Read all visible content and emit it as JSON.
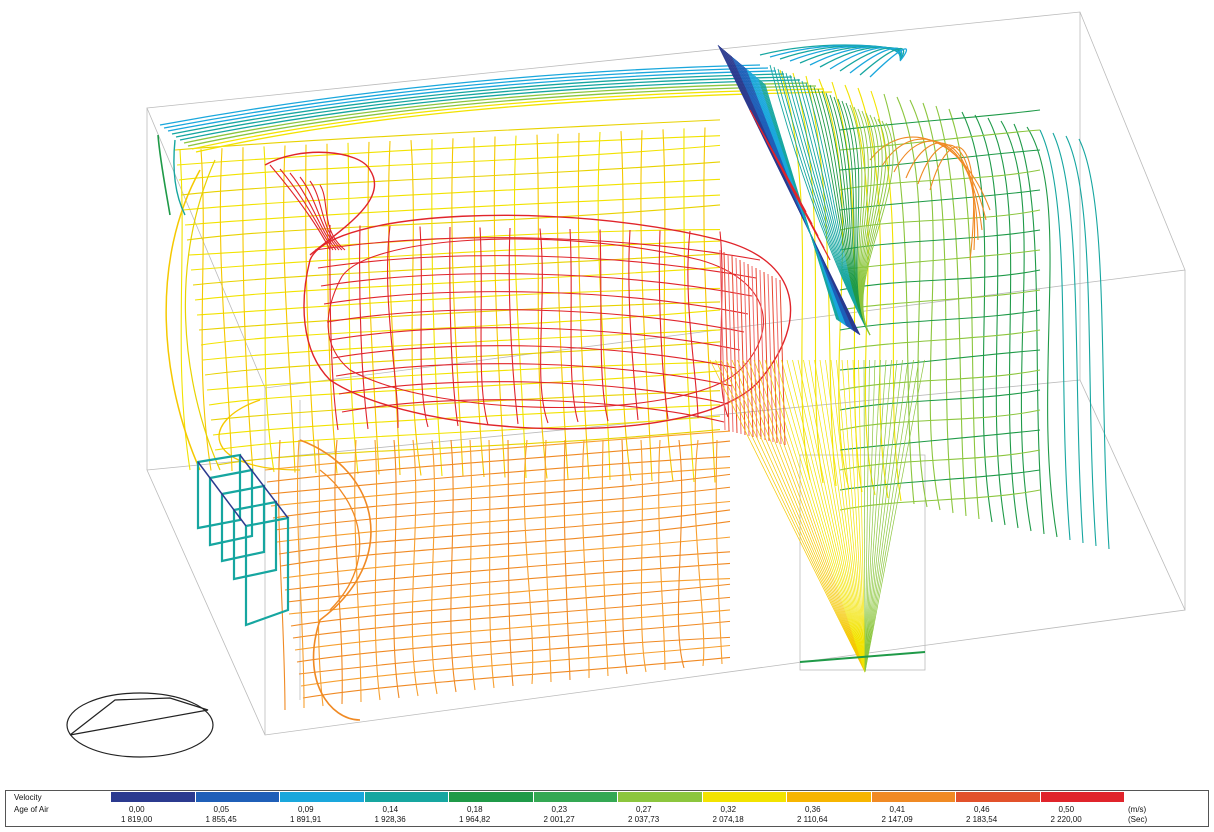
{
  "legend": {
    "velocity_label": "Velocity",
    "age_label": "Age of Air",
    "velocity_unit": "(m/s)",
    "age_unit": "(Sec)",
    "colors": [
      "#2b3a8f",
      "#1f5fb8",
      "#1aa7dc",
      "#16a6a0",
      "#1f9a48",
      "#34a853",
      "#8cc63e",
      "#f2e300",
      "#f7b500",
      "#f08a24",
      "#e2512b",
      "#e0242b"
    ],
    "velocity_values": [
      "0,00",
      "0,05",
      "0,09",
      "0,14",
      "0,18",
      "0,23",
      "0,27",
      "0,32",
      "0,36",
      "0,41",
      "0,46",
      "0,50"
    ],
    "age_values": [
      "1 819,00",
      "1 855,45",
      "1 891,91",
      "1 928,36",
      "1 964,82",
      "2 001,27",
      "2 037,73",
      "2 074,18",
      "2 110,64",
      "2 147,09",
      "2 183,54",
      "2 220,00"
    ]
  },
  "palette": {
    "red": "#e0242b",
    "orange": "#f08a24",
    "yellow": "#f2e300",
    "green": "#1f9a48",
    "teal": "#16a6a0",
    "blue": "#1aa7dc",
    "navy": "#2b3a8f"
  }
}
